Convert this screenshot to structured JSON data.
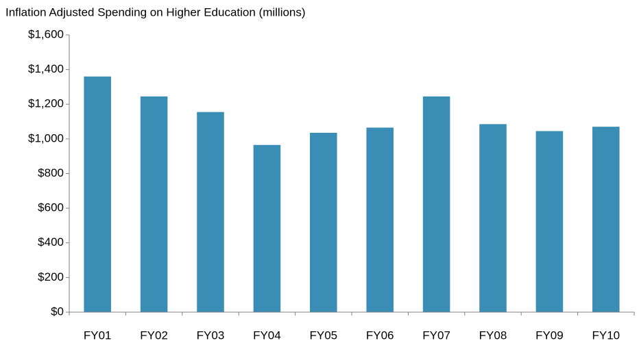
{
  "chart_data": {
    "type": "bar",
    "title": "Inflation Adjusted Spending on Higher Education (millions)",
    "categories": [
      "FY01",
      "FY02",
      "FY03",
      "FY04",
      "FY05",
      "FY06",
      "FY07",
      "FY08",
      "FY09",
      "FY10"
    ],
    "values": [
      1360,
      1245,
      1155,
      965,
      1035,
      1065,
      1245,
      1085,
      1045,
      1070
    ],
    "color": "#3a8db5",
    "ylim": [
      0,
      1600
    ],
    "yticks": [
      {
        "value": 0,
        "label": "$0"
      },
      {
        "value": 200,
        "label": "$200"
      },
      {
        "value": 400,
        "label": "$400"
      },
      {
        "value": 600,
        "label": "$600"
      },
      {
        "value": 800,
        "label": "$800"
      },
      {
        "value": 1000,
        "label": "$1,000"
      },
      {
        "value": 1200,
        "label": "$1,200"
      },
      {
        "value": 1400,
        "label": "$1,400"
      },
      {
        "value": 1600,
        "label": "$1,600"
      }
    ],
    "grid": false
  }
}
